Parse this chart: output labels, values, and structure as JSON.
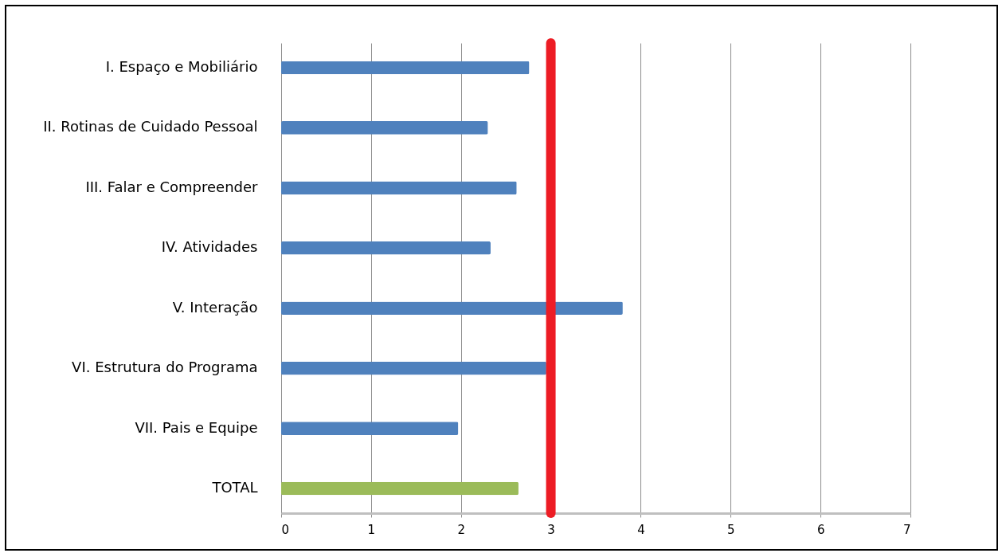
{
  "chart_data": {
    "type": "bar",
    "orientation": "horizontal",
    "categories": [
      "I. Espaço e Mobiliário",
      "II. Rotinas de Cuidado  Pessoal",
      "III. Falar e Compreender",
      "IV. Atividades",
      "V. Interação",
      "VI. Estrutura do Programa",
      "VII. Pais e Equipe",
      "TOTAL"
    ],
    "values": [
      2.76,
      2.3,
      2.62,
      2.33,
      3.8,
      2.95,
      1.97,
      2.64
    ],
    "colors": [
      "#4f81bd",
      "#4f81bd",
      "#4f81bd",
      "#4f81bd",
      "#4f81bd",
      "#4f81bd",
      "#4f81bd",
      "#9bbb59"
    ],
    "xlim": [
      0,
      7
    ],
    "xticks": [
      0,
      1,
      2,
      3,
      4,
      5,
      6,
      7
    ],
    "grid": "x",
    "ref_lines": [
      {
        "axis": "x",
        "value": 3,
        "color": "#ed1c24"
      }
    ]
  }
}
